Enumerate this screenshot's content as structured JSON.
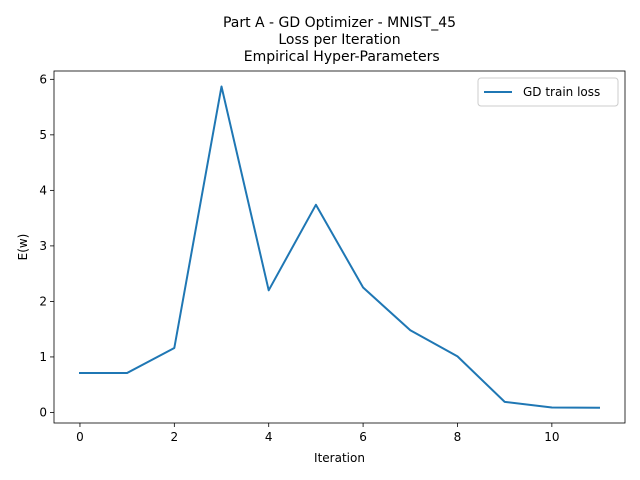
{
  "chart_data": {
    "type": "line",
    "title_lines": [
      "Part A - GD Optimizer - MNIST_45",
      "Loss per Iteration",
      " Empirical Hyper-Parameters"
    ],
    "xlabel": "Iteration",
    "ylabel": "E(w)",
    "xlim": [
      -0.55,
      11.55
    ],
    "ylim": [
      -0.19,
      6.15
    ],
    "xticks": [
      0,
      2,
      4,
      6,
      8,
      10
    ],
    "yticks": [
      0,
      1,
      2,
      3,
      4,
      5,
      6
    ],
    "grid": false,
    "legend_position": "top-right",
    "series": [
      {
        "name": "GD train loss",
        "color": "#1f77b4",
        "x": [
          0,
          1,
          2,
          3,
          4,
          5,
          6,
          7,
          8,
          9,
          10,
          11
        ],
        "y": [
          0.71,
          0.71,
          1.16,
          5.87,
          2.2,
          3.74,
          2.25,
          1.48,
          1.01,
          0.19,
          0.09,
          0.085
        ]
      }
    ]
  }
}
